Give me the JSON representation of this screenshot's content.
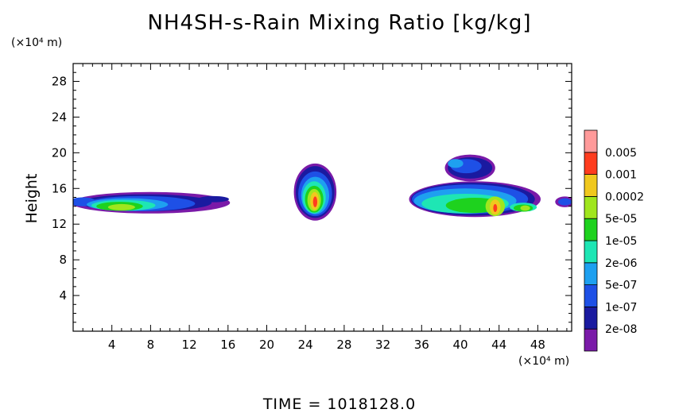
{
  "chart_data": {
    "type": "heatmap",
    "title": "NH4SH-s-Rain Mixing Ratio [kg/kg]",
    "ylabel": "Height",
    "x_unit_label": "(×10⁴ m)",
    "y_unit_label": "(×10⁴ m)",
    "xlim": [
      0,
      51.5
    ],
    "ylim": [
      0,
      30
    ],
    "x_ticks": [
      4,
      8,
      12,
      16,
      20,
      24,
      28,
      32,
      36,
      40,
      44,
      48
    ],
    "y_ticks": [
      4,
      8,
      12,
      16,
      20,
      24,
      28
    ],
    "colorbar": {
      "levels": [
        "2e-08",
        "1e-07",
        "5e-07",
        "2e-06",
        "1e-05",
        "5e-05",
        "0.0002",
        "0.001",
        "0.005"
      ],
      "colors": [
        "#7a1aa8",
        "#1a1aa0",
        "#1e50e6",
        "#1ea0f0",
        "#1ee6b4",
        "#1ed21e",
        "#a0e61e",
        "#f0c81e",
        "#ff3c1e",
        "#ff9a9a"
      ]
    },
    "regions": [
      {
        "name": "left band",
        "x_range": [
          0,
          16
        ],
        "y_range": [
          12.7,
          15.9
        ],
        "peak_level": "5e-05"
      },
      {
        "name": "center cell",
        "x_range": [
          22.8,
          27.2
        ],
        "y_range": [
          12.6,
          19.0
        ],
        "peak_level": "0.001"
      },
      {
        "name": "right band",
        "x_range": [
          34.5,
          48.5
        ],
        "y_range": [
          12.7,
          19.9
        ],
        "peak_level": "0.001"
      }
    ]
  },
  "footer": {
    "time_label": "TIME  =  1018128.0"
  }
}
